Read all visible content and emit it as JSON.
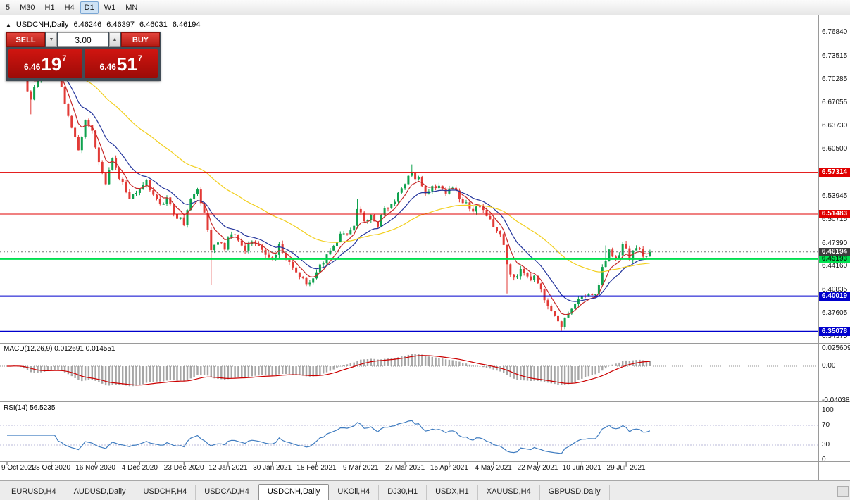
{
  "toolbar": {
    "timeframes": [
      {
        "label": "5",
        "active": false
      },
      {
        "label": "M30",
        "active": false
      },
      {
        "label": "H1",
        "active": false
      },
      {
        "label": "H4",
        "active": false
      },
      {
        "label": "D1",
        "active": true
      },
      {
        "label": "W1",
        "active": false
      },
      {
        "label": "MN",
        "active": false
      }
    ]
  },
  "chart_header": {
    "toggle_glyph": "▲",
    "symbol": "USDCNH,Daily",
    "open": "6.46246",
    "high": "6.46397",
    "low": "6.46031",
    "close": "6.46194"
  },
  "trade_panel": {
    "sell_label": "SELL",
    "buy_label": "BUY",
    "volume": "3.00",
    "spin_down_glyph": "▼",
    "spin_up_glyph": "▲",
    "sell_price": {
      "base": "6.46",
      "big": "19",
      "sup": "7"
    },
    "buy_price": {
      "base": "6.46",
      "big": "51",
      "sup": "7"
    }
  },
  "main_chart": {
    "price_scale_labels": [
      "6.76840",
      "6.73515",
      "6.70285",
      "6.67055",
      "6.63730",
      "6.60500",
      "6.57270",
      "6.53945",
      "6.50715",
      "6.47390",
      "6.44160",
      "6.40835",
      "6.37605",
      "6.34375"
    ],
    "h_lines": [
      {
        "price": 6.57314,
        "label": "6.57314",
        "color": "#e00000",
        "width": 1,
        "text_color": "#ffffff"
      },
      {
        "price": 6.51483,
        "label": "6.51483",
        "color": "#e00000",
        "width": 1,
        "text_color": "#ffffff"
      },
      {
        "price": 6.45193,
        "label": "6.45193",
        "color": "#00e150",
        "width": 2,
        "text_color": "#00320f"
      },
      {
        "price": 6.40019,
        "label": "6.40019",
        "color": "#0000cd",
        "width": 2,
        "text_color": "#ffffff"
      },
      {
        "price": 6.35078,
        "label": "6.35078",
        "color": "#0000cd",
        "width": 2,
        "text_color": "#ffffff"
      }
    ],
    "current_price": {
      "label": "6.46194",
      "value": 6.46194,
      "bg": "#3d3d3d",
      "text_color": "#ffffff"
    }
  },
  "macd_panel": {
    "header": "MACD(12,26,9) 0.012691 0.014551",
    "axis": {
      "max": 0.025609,
      "min": -0.040388
    },
    "scale_labels": [
      {
        "text": "0.025609",
        "v": 0.025609
      },
      {
        "text": "0.00",
        "v": 0
      },
      {
        "text": "-0.040388",
        "v": -0.040388
      }
    ],
    "histogram_color": "#a6a6a6",
    "signal_color": "#cc0000"
  },
  "rsi_panel": {
    "header": "RSI(14) 56.5235",
    "line_color": "#3f7cc0",
    "levels": [
      70,
      30
    ],
    "scale_labels": [
      {
        "text": "100",
        "v": 100
      },
      {
        "text": "70",
        "v": 70
      },
      {
        "text": "30",
        "v": 30
      },
      {
        "text": "0",
        "v": 0
      }
    ]
  },
  "x_axis_labels": [
    {
      "text": "9 Oct 2020",
      "i": 0
    },
    {
      "text": "28 Oct 2020",
      "i": 13
    },
    {
      "text": "16 Nov 2020",
      "i": 26
    },
    {
      "text": "4 Dec 2020",
      "i": 39
    },
    {
      "text": "23 Dec 2020",
      "i": 52
    },
    {
      "text": "12 Jan 2021",
      "i": 65
    },
    {
      "text": "30 Jan 2021",
      "i": 78
    },
    {
      "text": "18 Feb 2021",
      "i": 91
    },
    {
      "text": "9 Mar 2021",
      "i": 104
    },
    {
      "text": "27 Mar 2021",
      "i": 117
    },
    {
      "text": "15 Apr 2021",
      "i": 130
    },
    {
      "text": "4 May 2021",
      "i": 143
    },
    {
      "text": "22 May 2021",
      "i": 156
    },
    {
      "text": "10 Jun 2021",
      "i": 169
    },
    {
      "text": "29 Jun 2021",
      "i": 182
    }
  ],
  "bottom_tabs": [
    {
      "label": "EURUSD,H4",
      "active": false
    },
    {
      "label": "AUDUSD,Daily",
      "active": false
    },
    {
      "label": "USDCHF,H4",
      "active": false
    },
    {
      "label": "USDCAD,H4",
      "active": false
    },
    {
      "label": "USDCNH,Daily",
      "active": true
    },
    {
      "label": "UKOil,H4",
      "active": false
    },
    {
      "label": "DJ30,H1",
      "active": false
    },
    {
      "label": "USDX,H1",
      "active": false
    },
    {
      "label": "XAUUSD,H4",
      "active": false
    },
    {
      "label": "GBPUSD,Daily",
      "active": false
    }
  ],
  "chart_data": {
    "type": "candlestick",
    "title": "USDCNH,Daily",
    "ohlc_display": {
      "open": 6.46246,
      "high": 6.46397,
      "low": 6.46031,
      "close": 6.46194
    },
    "candle_count": 190,
    "volatility": 0.0045,
    "last_close": 6.46194,
    "price_axis": {
      "max": 6.7861,
      "min": 6.3349
    },
    "up_color": "#0fa24e",
    "down_color": "#e23a36",
    "trend_points": [
      [
        0,
        6.745
      ],
      [
        2,
        6.752
      ],
      [
        5,
        6.705
      ],
      [
        7,
        6.675
      ],
      [
        9,
        6.705
      ],
      [
        12,
        6.728
      ],
      [
        15,
        6.705
      ],
      [
        18,
        6.655
      ],
      [
        21,
        6.603
      ],
      [
        23,
        6.648
      ],
      [
        25,
        6.628
      ],
      [
        27,
        6.585
      ],
      [
        29,
        6.558
      ],
      [
        31,
        6.592
      ],
      [
        33,
        6.568
      ],
      [
        36,
        6.537
      ],
      [
        39,
        6.549
      ],
      [
        41,
        6.563
      ],
      [
        43,
        6.54
      ],
      [
        45,
        6.525
      ],
      [
        47,
        6.54
      ],
      [
        49,
        6.517
      ],
      [
        52,
        6.502
      ],
      [
        54,
        6.533
      ],
      [
        56,
        6.548
      ],
      [
        58,
        6.52
      ],
      [
        60,
        6.465
      ],
      [
        62,
        6.478
      ],
      [
        64,
        6.468
      ],
      [
        66,
        6.488
      ],
      [
        68,
        6.476
      ],
      [
        70,
        6.465
      ],
      [
        72,
        6.479
      ],
      [
        74,
        6.469
      ],
      [
        76,
        6.459
      ],
      [
        78,
        6.455
      ],
      [
        80,
        6.469
      ],
      [
        82,
        6.454
      ],
      [
        84,
        6.441
      ],
      [
        86,
        6.43
      ],
      [
        88,
        6.419
      ],
      [
        90,
        6.425
      ],
      [
        92,
        6.44
      ],
      [
        94,
        6.459
      ],
      [
        96,
        6.469
      ],
      [
        98,
        6.483
      ],
      [
        100,
        6.49
      ],
      [
        102,
        6.499
      ],
      [
        103,
        6.522
      ],
      [
        105,
        6.505
      ],
      [
        107,
        6.514
      ],
      [
        109,
        6.499
      ],
      [
        111,
        6.519
      ],
      [
        113,
        6.528
      ],
      [
        115,
        6.544
      ],
      [
        117,
        6.558
      ],
      [
        119,
        6.572
      ],
      [
        121,
        6.563
      ],
      [
        123,
        6.545
      ],
      [
        125,
        6.553
      ],
      [
        127,
        6.558
      ],
      [
        129,
        6.545
      ],
      [
        131,
        6.553
      ],
      [
        133,
        6.539
      ],
      [
        135,
        6.529
      ],
      [
        137,
        6.519
      ],
      [
        139,
        6.524
      ],
      [
        141,
        6.509
      ],
      [
        143,
        6.499
      ],
      [
        145,
        6.488
      ],
      [
        146,
        6.476
      ],
      [
        147,
        6.442
      ],
      [
        149,
        6.425
      ],
      [
        151,
        6.439
      ],
      [
        153,
        6.424
      ],
      [
        155,
        6.429
      ],
      [
        157,
        6.409
      ],
      [
        159,
        6.384
      ],
      [
        161,
        6.369
      ],
      [
        163,
        6.359
      ],
      [
        165,
        6.374
      ],
      [
        167,
        6.388
      ],
      [
        169,
        6.399
      ],
      [
        171,
        6.404
      ],
      [
        173,
        6.399
      ],
      [
        175,
        6.437
      ],
      [
        177,
        6.462
      ],
      [
        179,
        6.449
      ],
      [
        181,
        6.473
      ],
      [
        183,
        6.455
      ],
      [
        185,
        6.468
      ],
      [
        187,
        6.456
      ],
      [
        189,
        6.46194
      ]
    ],
    "wick_events": [
      {
        "i": 7,
        "low": 6.654
      },
      {
        "i": 60,
        "low": 6.416
      },
      {
        "i": 103,
        "high": 6.536
      },
      {
        "i": 119,
        "high": 6.584
      },
      {
        "i": 147,
        "low": 6.404
      },
      {
        "i": 163,
        "low": 6.352
      },
      {
        "i": 176,
        "high": 6.471
      }
    ],
    "moving_averages": [
      {
        "period": 6,
        "color": "#c62828"
      },
      {
        "period": 14,
        "color": "#24359c"
      },
      {
        "period": 45,
        "color": "#f2cf1d"
      }
    ]
  }
}
